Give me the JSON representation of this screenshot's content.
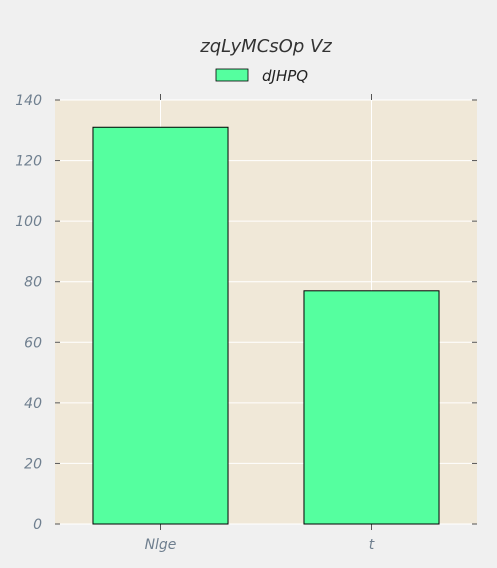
{
  "chart_data": {
    "type": "bar",
    "title": "zqLyMCsOp Vz",
    "categories": [
      "Nlge",
      "t"
    ],
    "series": [
      {
        "name": "dJHPQ",
        "values": [
          131,
          77
        ],
        "color": "#55ff9f"
      }
    ],
    "xlabel": "",
    "ylabel": "",
    "ylim": [
      0,
      140
    ],
    "yticks": [
      0,
      20,
      40,
      60,
      80,
      100,
      120,
      140
    ],
    "grid": true,
    "legend_position": "top-center",
    "colors": {
      "figure_background": "#f0f0f0",
      "plot_background": "#f0e8d8",
      "grid": "#ffffff",
      "bar_edge": "#000000",
      "tick_label": "#6f7f8f"
    }
  }
}
